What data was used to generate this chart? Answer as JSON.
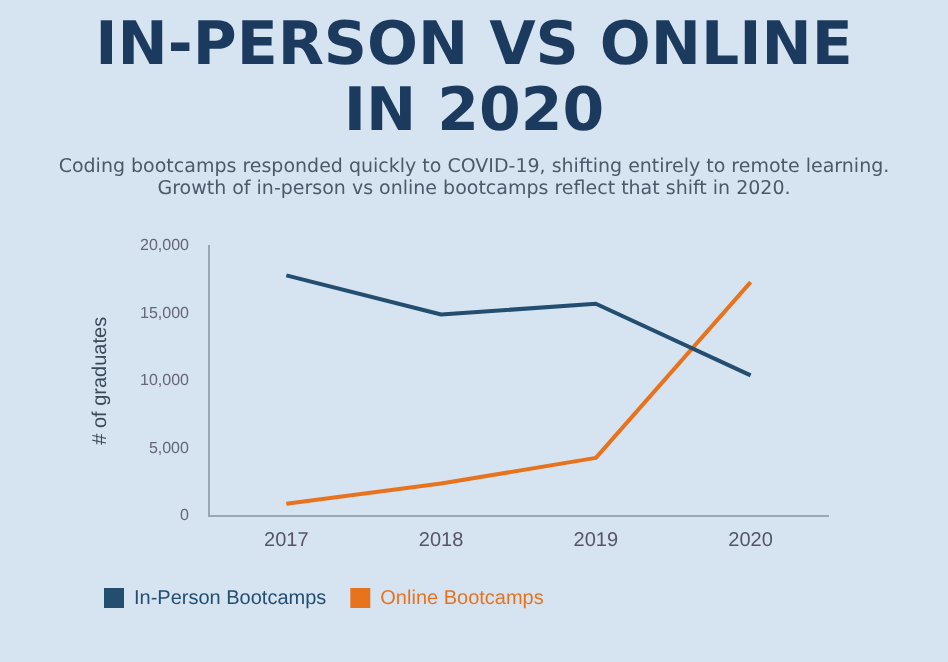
{
  "chart_data": {
    "type": "line",
    "title": "IN-PERSON VS ONLINE\nIN 2020",
    "subtitle": "Coding bootcamps responded quickly to COVID-19, shifting entirely to remote learning. Growth of in-person vs online bootcamps reflect that shift in 2020.",
    "ylabel": "# of graduates",
    "categories": [
      "2017",
      "2018",
      "2019",
      "2020"
    ],
    "series": [
      {
        "name": "In-Person Bootcamps",
        "color": "#234e70",
        "values": [
          17800,
          14900,
          15700,
          10400
        ]
      },
      {
        "name": "Online Bootcamps",
        "color": "#e8731f",
        "values": [
          900,
          2400,
          4300,
          17300
        ]
      }
    ],
    "ylim": [
      0,
      20000
    ],
    "yticks": [
      {
        "value": 0,
        "label": "0"
      },
      {
        "value": 5000,
        "label": "5,000"
      },
      {
        "value": 10000,
        "label": "10,000"
      },
      {
        "value": 15000,
        "label": "15,000"
      },
      {
        "value": 20000,
        "label": "20,000"
      }
    ],
    "grid": false,
    "legend": "bottom",
    "marker": "none",
    "line_style": "solid"
  }
}
